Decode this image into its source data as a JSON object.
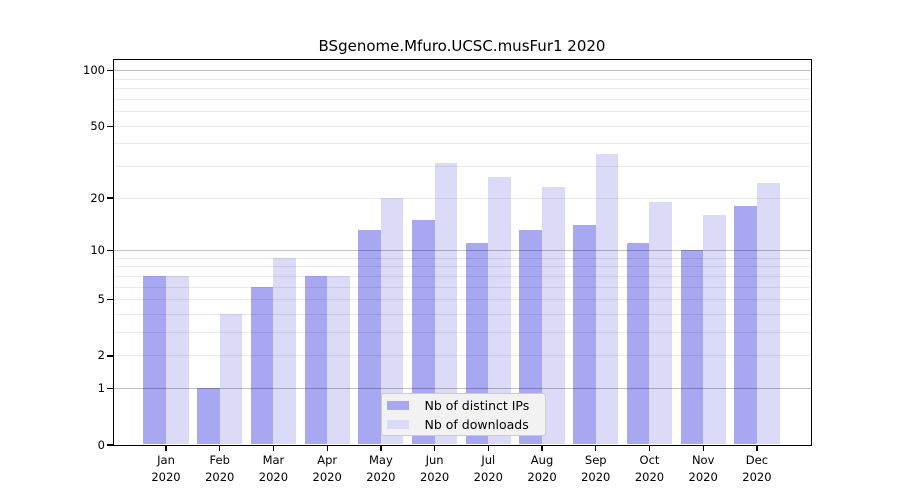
{
  "title": "BSgenome.Mfuro.UCSC.musFur1 2020",
  "chart_data": {
    "type": "bar",
    "title": "BSgenome.Mfuro.UCSC.musFur1 2020",
    "categories": [
      "Jan 2020",
      "Feb 2020",
      "Mar 2020",
      "Apr 2020",
      "May 2020",
      "Jun 2020",
      "Jul 2020",
      "Aug 2020",
      "Sep 2020",
      "Oct 2020",
      "Nov 2020",
      "Dec 2020"
    ],
    "series": [
      {
        "name": "Nb of distinct IPs",
        "color": "#a7a7f2",
        "values": [
          7,
          1,
          6,
          7,
          13,
          15,
          11,
          13,
          14,
          11,
          10,
          18
        ]
      },
      {
        "name": "Nb of downloads",
        "color": "#dbdbf8",
        "values": [
          7,
          4,
          9,
          7,
          20,
          31,
          26,
          23,
          35,
          19,
          16,
          24
        ]
      }
    ],
    "xlabel": "",
    "ylabel": "",
    "yscale": "log1p",
    "ylim": [
      0,
      115
    ],
    "y_tick_values": [
      0,
      1,
      2,
      5,
      10,
      20,
      50,
      100
    ],
    "y_tick_labels": [
      "0",
      "1",
      "2",
      "5",
      "10",
      "20",
      "50",
      "100"
    ],
    "major_grid_values": [
      1,
      10,
      100
    ],
    "minor_grid_values": [
      2,
      3,
      4,
      5,
      6,
      7,
      8,
      9,
      20,
      30,
      40,
      50,
      60,
      70,
      80,
      90
    ],
    "grid": "horizontal",
    "legend_position": "bottom-center"
  },
  "colors": {
    "ips_bar": "#a7a7f2",
    "downloads_bar": "#dbdbf8",
    "major_grid": "#c2c2c2",
    "minor_grid": "#ebebeb",
    "legend_bg": "#f2f2f2",
    "legend_border": "#cbcbcb",
    "axis": "#000000"
  }
}
